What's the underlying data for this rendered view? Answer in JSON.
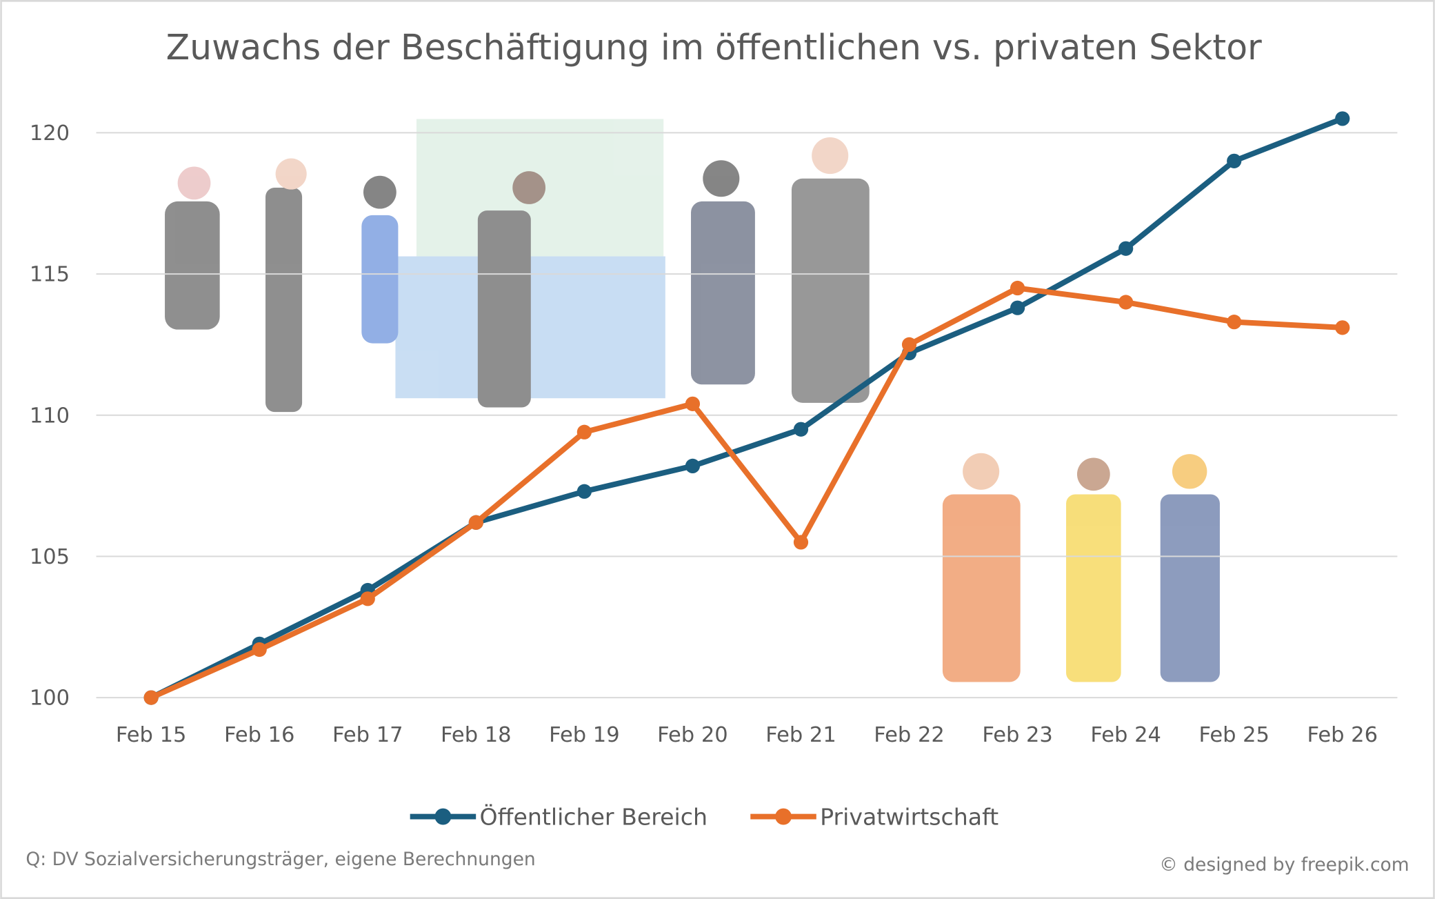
{
  "chart_data": {
    "type": "line",
    "title": "Zuwachs der Beschäftigung im öffentlichen vs. privaten Sektor",
    "xlabel": "",
    "ylabel": "",
    "categories": [
      "Feb 15",
      "Feb 16",
      "Feb 17",
      "Feb 18",
      "Feb 19",
      "Feb 20",
      "Feb 21",
      "Feb 22",
      "Feb 23",
      "Feb 24",
      "Feb 25",
      "Feb 26"
    ],
    "ylim": [
      100,
      120
    ],
    "yticks": [
      "100",
      "105",
      "110",
      "115",
      "120"
    ],
    "grid": true,
    "legend_position": "bottom",
    "series": [
      {
        "name": "Öffentlicher Bereich",
        "color": "#1b5e80",
        "values": [
          100,
          101.9,
          103.8,
          106.2,
          107.3,
          108.2,
          109.5,
          112.2,
          113.8,
          115.9,
          119.0,
          120.5
        ]
      },
      {
        "name": "Privatwirtschaft",
        "color": "#e8702a",
        "values": [
          100,
          101.7,
          103.5,
          106.2,
          109.4,
          110.4,
          105.5,
          112.5,
          114.5,
          114.0,
          113.3,
          113.1
        ]
      }
    ]
  },
  "source_note": "Q: DV Sozialversicherungsträger,  eigene Berechnungen",
  "credit": "© designed by freepik.com"
}
